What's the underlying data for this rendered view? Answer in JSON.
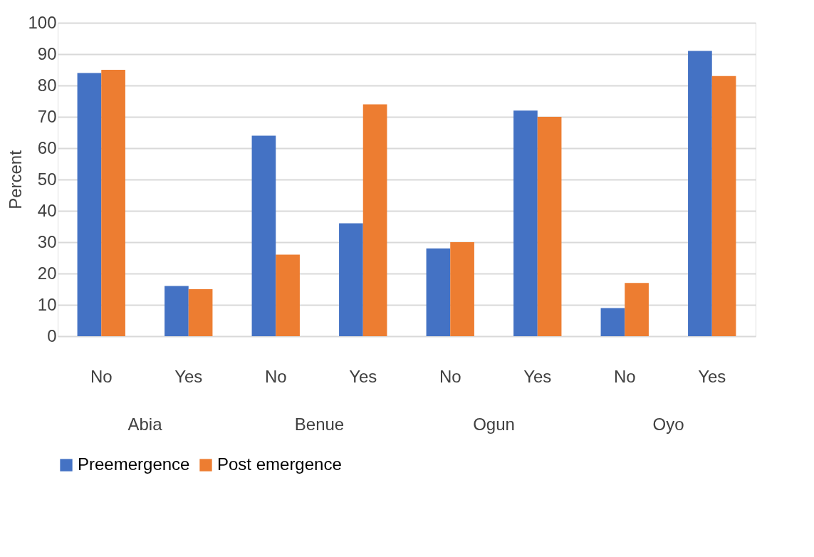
{
  "chart_data": {
    "type": "bar",
    "ylabel": "Percent",
    "categories": [
      "No",
      "Yes",
      "No",
      "Yes",
      "No",
      "Yes",
      "No",
      "Yes"
    ],
    "series": [
      {
        "name": "Preemergence",
        "color": "#4472c4",
        "values": [
          84,
          16,
          64,
          36,
          28,
          72,
          9,
          91
        ]
      },
      {
        "name": "Post emergence",
        "color": "#ed7d31",
        "values": [
          85,
          15,
          26,
          74,
          30,
          70,
          17,
          83
        ]
      }
    ],
    "annotations": [
      "Abia",
      "Benue",
      "Ogun",
      "Oyo"
    ],
    "ylim": [
      0,
      100
    ],
    "yticks": [
      0,
      10,
      20,
      30,
      40,
      50,
      60,
      70,
      80,
      90,
      100
    ],
    "grid": "y",
    "legend": "bottom"
  }
}
